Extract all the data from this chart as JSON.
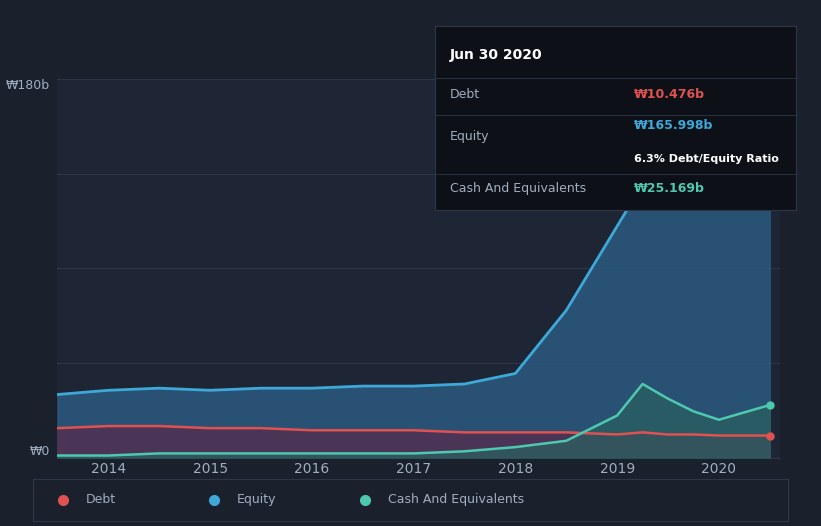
{
  "background_color": "#1a202c",
  "plot_bg_color": "#1e2535",
  "title": "Jun 30 2020",
  "ylabel_top": "₩0",
  "ylabel_180": "₩180b",
  "x_ticks": [
    2014,
    2015,
    2016,
    2017,
    2018,
    2019,
    2020
  ],
  "years": [
    2013.5,
    2014,
    2014.5,
    2015,
    2015.5,
    2016,
    2016.5,
    2017,
    2017.5,
    2018,
    2018.5,
    2019,
    2019.25,
    2019.5,
    2019.75,
    2020,
    2020.5
  ],
  "equity": [
    30,
    32,
    33,
    32,
    33,
    33,
    34,
    34,
    35,
    40,
    70,
    110,
    130,
    150,
    155,
    160,
    166
  ],
  "debt": [
    14,
    15,
    15,
    14,
    14,
    13,
    13,
    13,
    12,
    12,
    12,
    11,
    12,
    11,
    11,
    10.5,
    10.5
  ],
  "cash": [
    1,
    1,
    2,
    2,
    2,
    2,
    2,
    2,
    3,
    5,
    8,
    20,
    35,
    28,
    22,
    18,
    25
  ],
  "equity_color": "#3ea8d8",
  "debt_color": "#e05252",
  "cash_color": "#4ec9b0",
  "equity_fill": "#2a5a80",
  "debt_fill": "#5a2a4a",
  "cash_fill": "#2a6060",
  "grid_color": "#2d3748",
  "text_color": "#a0aec0",
  "tooltip_bg": "#0d1117",
  "tooltip_border": "#2d3748",
  "debt_label": "Debt",
  "equity_label": "Equity",
  "cash_label": "Cash And Equivalents",
  "tooltip_title": "Jun 30 2020",
  "tooltip_debt_val": "₩10.476b",
  "tooltip_equity_val": "₩165.998b",
  "tooltip_ratio": "6.3% Debt/Equity Ratio",
  "tooltip_cash_val": "₩25.169b",
  "ylim": [
    0,
    180
  ]
}
